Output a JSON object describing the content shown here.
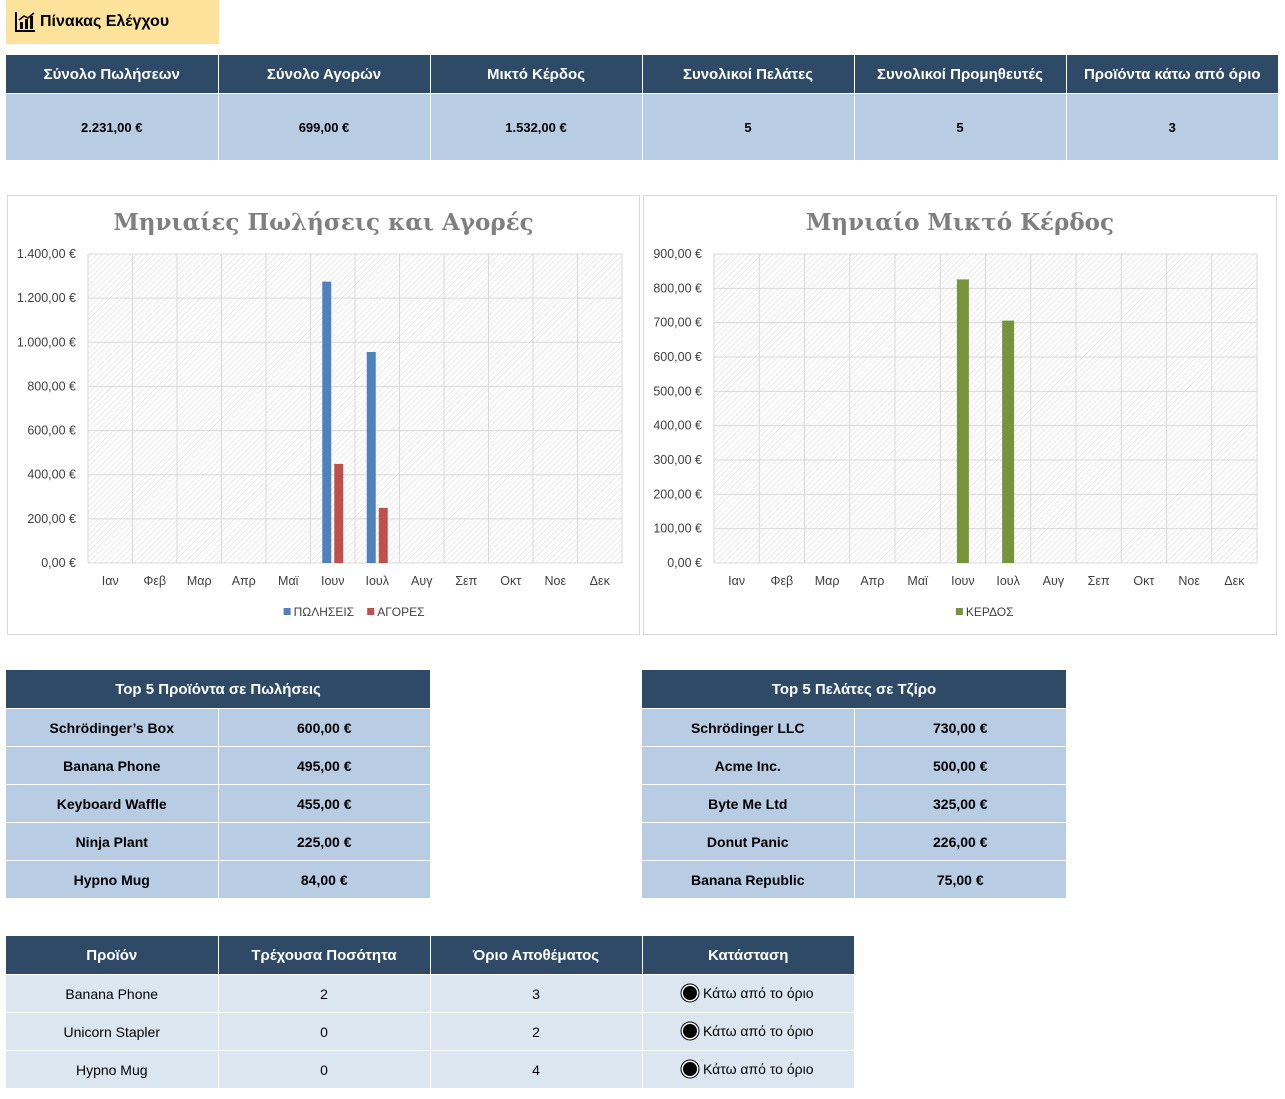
{
  "dashboard": {
    "title": "Πίνακας Ελέγχου",
    "icon": "bar-chart-icon",
    "header_bg": "#2e4a66",
    "accent_bg": "#fde29b"
  },
  "kpis": [
    {
      "label": "Σύνολο Πωλήσεων",
      "value": "2.231,00 €"
    },
    {
      "label": "Σύνολο Αγορών",
      "value": "699,00 €"
    },
    {
      "label": "Μικτό Κέρδος",
      "value": "1.532,00 €"
    },
    {
      "label": "Συνολικοί Πελάτες",
      "value": "5"
    },
    {
      "label": "Συνολικοί Προμηθευτές",
      "value": "5"
    },
    {
      "label": "Προϊόντα κάτω από όριο",
      "value": "3"
    }
  ],
  "chart_data": [
    {
      "type": "bar",
      "title": "Μηνιαίες Πωλήσεις και Αγορές",
      "categories": [
        "Ιαν",
        "Φεβ",
        "Μαρ",
        "Απρ",
        "Μαϊ",
        "Ιουν",
        "Ιουλ",
        "Αυγ",
        "Σεπ",
        "Οκτ",
        "Νοε",
        "Δεκ"
      ],
      "series": [
        {
          "name": "ΠΩΛΗΣΕΙΣ",
          "color": "#4f81bd",
          "values": [
            0,
            0,
            0,
            0,
            0,
            1275,
            956,
            0,
            0,
            0,
            0,
            0
          ]
        },
        {
          "name": "ΑΓΟΡΕΣ",
          "color": "#c0504d",
          "values": [
            0,
            0,
            0,
            0,
            0,
            449,
            250,
            0,
            0,
            0,
            0,
            0
          ]
        }
      ],
      "ylim": [
        0,
        1400
      ],
      "ytick_step": 200,
      "ytick_labels": [
        "0,00 €",
        "200,00 €",
        "400,00 €",
        "600,00 €",
        "800,00 €",
        "1.000,00 €",
        "1.200,00 €",
        "1.400,00 €"
      ],
      "legend": "bottom",
      "grid": true
    },
    {
      "type": "bar",
      "title": "Μηνιαίο Μικτό Κέρδος",
      "categories": [
        "Ιαν",
        "Φεβ",
        "Μαρ",
        "Απρ",
        "Μαϊ",
        "Ιουν",
        "Ιουλ",
        "Αυγ",
        "Σεπ",
        "Οκτ",
        "Νοε",
        "Δεκ"
      ],
      "series": [
        {
          "name": "ΚΕΡΔΟΣ",
          "color": "#77933c",
          "values": [
            0,
            0,
            0,
            0,
            0,
            826,
            706,
            0,
            0,
            0,
            0,
            0
          ]
        }
      ],
      "ylim": [
        0,
        900
      ],
      "ytick_step": 100,
      "ytick_labels": [
        "0,00 €",
        "100,00 €",
        "200,00 €",
        "300,00 €",
        "400,00 €",
        "500,00 €",
        "600,00 €",
        "700,00 €",
        "800,00 €",
        "900,00 €"
      ],
      "legend": "bottom",
      "grid": true
    }
  ],
  "top_products": {
    "title": "Top 5 Προϊόντα σε Πωλήσεις",
    "rows": [
      {
        "name": "Schrödinger’s Box",
        "value": "600,00 €"
      },
      {
        "name": "Banana Phone",
        "value": "495,00 €"
      },
      {
        "name": "Keyboard Waffle",
        "value": "455,00 €"
      },
      {
        "name": "Ninja Plant",
        "value": "225,00 €"
      },
      {
        "name": "Hypno Mug",
        "value": "84,00 €"
      }
    ]
  },
  "top_customers": {
    "title": "Top 5 Πελάτες σε Τζίρο",
    "rows": [
      {
        "name": "Schrödinger LLC",
        "value": "730,00 €"
      },
      {
        "name": "Acme Inc.",
        "value": "500,00 €"
      },
      {
        "name": "Byte Me Ltd",
        "value": "325,00 €"
      },
      {
        "name": "Donut Panic",
        "value": "226,00 €"
      },
      {
        "name": "Banana Republic",
        "value": "75,00 €"
      }
    ]
  },
  "stock": {
    "headers": [
      "Προϊόν",
      "Τρέχουσα Ποσότητα",
      "Όριο Αποθέματος",
      "Κατάσταση"
    ],
    "rows": [
      {
        "product": "Banana Phone",
        "qty": "2",
        "limit": "3",
        "status": "Κάτω από το όριο"
      },
      {
        "product": "Unicorn Stapler",
        "qty": "0",
        "limit": "2",
        "status": "Κάτω από το όριο"
      },
      {
        "product": "Hypno Mug",
        "qty": "0",
        "limit": "4",
        "status": "Κάτω από το όριο"
      }
    ],
    "status_icon": "status-dot-icon"
  }
}
